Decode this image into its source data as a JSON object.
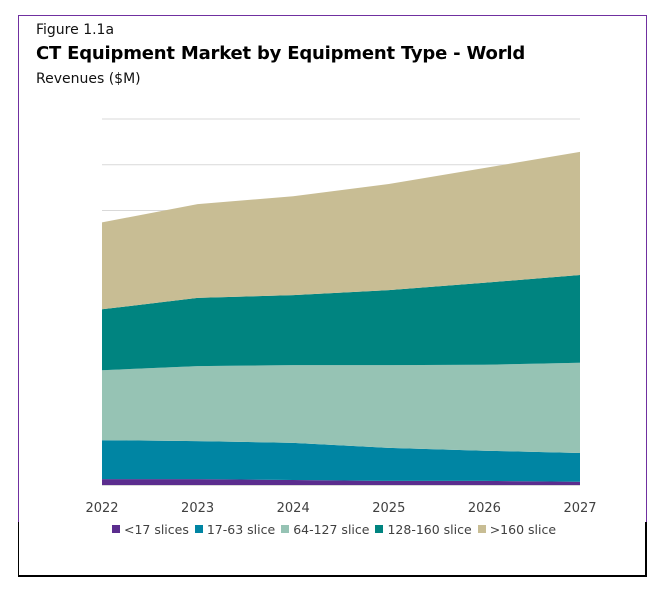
{
  "figure": {
    "label": "Figure 1.1a",
    "title": "CT Equipment Market by Equipment Type - World",
    "subtitle": "Revenues ($M)"
  },
  "chart_data": {
    "type": "area",
    "stacked": true,
    "title": "CT Equipment Market by Equipment Type - World",
    "subtitle": "Revenues ($M)",
    "xlabel": "",
    "ylabel": "Revenues ($M)",
    "y_units_note": "No y-axis tick labels shown; values are estimated in gridline units (1 unit = one gridline interval)",
    "ylim": [
      0,
      8
    ],
    "grid": true,
    "legend_position": "bottom",
    "categories": [
      "2022",
      "2023",
      "2024",
      "2025",
      "2026",
      "2027"
    ],
    "series": [
      {
        "name": "<17 slices",
        "color": "#5b2d8e",
        "values": [
          0.13,
          0.13,
          0.11,
          0.09,
          0.09,
          0.07
        ]
      },
      {
        "name": "17-63 slice",
        "color": "#0085a3",
        "values": [
          0.85,
          0.83,
          0.81,
          0.72,
          0.66,
          0.63
        ]
      },
      {
        "name": "64-127 slice",
        "color": "#96c3b4",
        "values": [
          1.53,
          1.64,
          1.7,
          1.81,
          1.88,
          1.97
        ]
      },
      {
        "name": "128-160 slice",
        "color": "#008480",
        "values": [
          1.33,
          1.49,
          1.53,
          1.64,
          1.79,
          1.92
        ]
      },
      {
        "name": ">160 slice",
        "color": "#c8bd94",
        "values": [
          1.9,
          2.05,
          2.16,
          2.32,
          2.51,
          2.69
        ]
      }
    ]
  }
}
